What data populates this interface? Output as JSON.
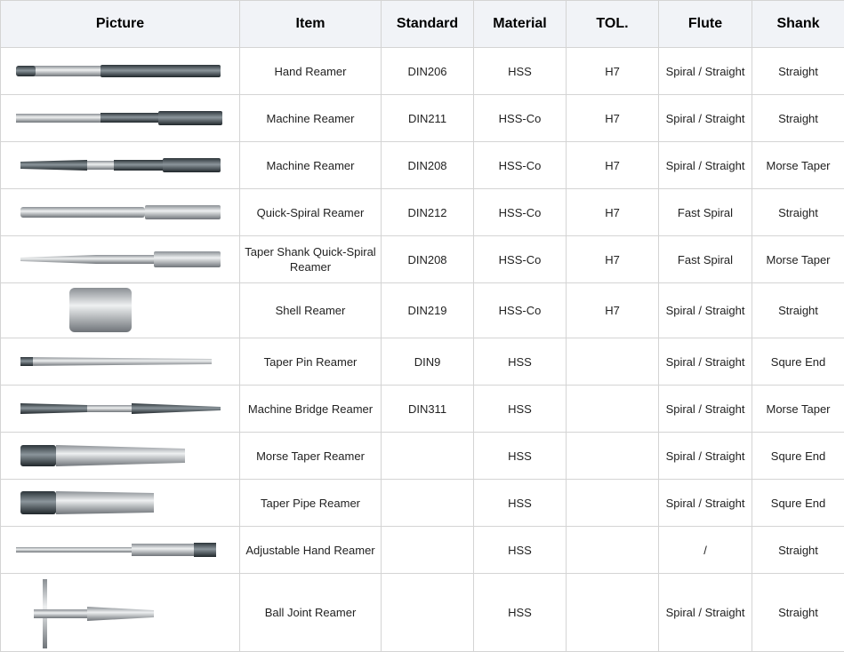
{
  "headers": [
    "Picture",
    "Item",
    "Standard",
    "Material",
    "TOL.",
    "Flute",
    "Shank"
  ],
  "rows": [
    {
      "picture": "hand-reamer-image",
      "item": "Hand Reamer",
      "standard": "DIN206",
      "material": "HSS",
      "tol": "H7",
      "flute": "Spiral / Straight",
      "shank": "Straight"
    },
    {
      "picture": "machine-reamer-image",
      "item": "Machine Reamer",
      "standard": "DIN211",
      "material": "HSS-Co",
      "tol": "H7",
      "flute": "Spiral / Straight",
      "shank": "Straight"
    },
    {
      "picture": "machine-reamer-taper-image",
      "item": "Machine Reamer",
      "standard": "DIN208",
      "material": "HSS-Co",
      "tol": "H7",
      "flute": "Spiral / Straight",
      "shank": "Morse Taper"
    },
    {
      "picture": "quick-spiral-reamer-image",
      "item": "Quick-Spiral Reamer",
      "standard": "DIN212",
      "material": "HSS-Co",
      "tol": "H7",
      "flute": "Fast Spiral",
      "shank": "Straight"
    },
    {
      "picture": "taper-shank-quick-spiral-reamer-image",
      "item": "Taper Shank Quick-Spiral Reamer",
      "standard": "DIN208",
      "material": "HSS-Co",
      "tol": "H7",
      "flute": "Fast Spiral",
      "shank": "Morse Taper"
    },
    {
      "picture": "shell-reamer-image",
      "item": "Shell Reamer",
      "standard": "DIN219",
      "material": "HSS-Co",
      "tol": "H7",
      "flute": "Spiral / Straight",
      "shank": "Straight"
    },
    {
      "picture": "taper-pin-reamer-image",
      "item": "Taper Pin Reamer",
      "standard": "DIN9",
      "material": "HSS",
      "tol": "",
      "flute": "Spiral / Straight",
      "shank": "Squre End"
    },
    {
      "picture": "machine-bridge-reamer-image",
      "item": "Machine Bridge Reamer",
      "standard": "DIN311",
      "material": "HSS",
      "tol": "",
      "flute": "Spiral / Straight",
      "shank": "Morse Taper"
    },
    {
      "picture": "morse-taper-reamer-image",
      "item": "Morse Taper Reamer",
      "standard": "",
      "material": "HSS",
      "tol": "",
      "flute": "Spiral / Straight",
      "shank": "Squre End"
    },
    {
      "picture": "taper-pipe-reamer-image",
      "item": "Taper Pipe Reamer",
      "standard": "",
      "material": "HSS",
      "tol": "",
      "flute": "Spiral / Straight",
      "shank": "Squre End"
    },
    {
      "picture": "adjustable-hand-reamer-image",
      "item": "Adjustable Hand Reamer",
      "standard": "",
      "material": "HSS",
      "tol": "",
      "flute": "/",
      "shank": "Straight"
    },
    {
      "picture": "ball-joint-reamer-image",
      "item": "Ball Joint Reamer",
      "standard": "",
      "material": "HSS",
      "tol": "",
      "flute": "Spiral / Straight",
      "shank": "Straight"
    }
  ]
}
